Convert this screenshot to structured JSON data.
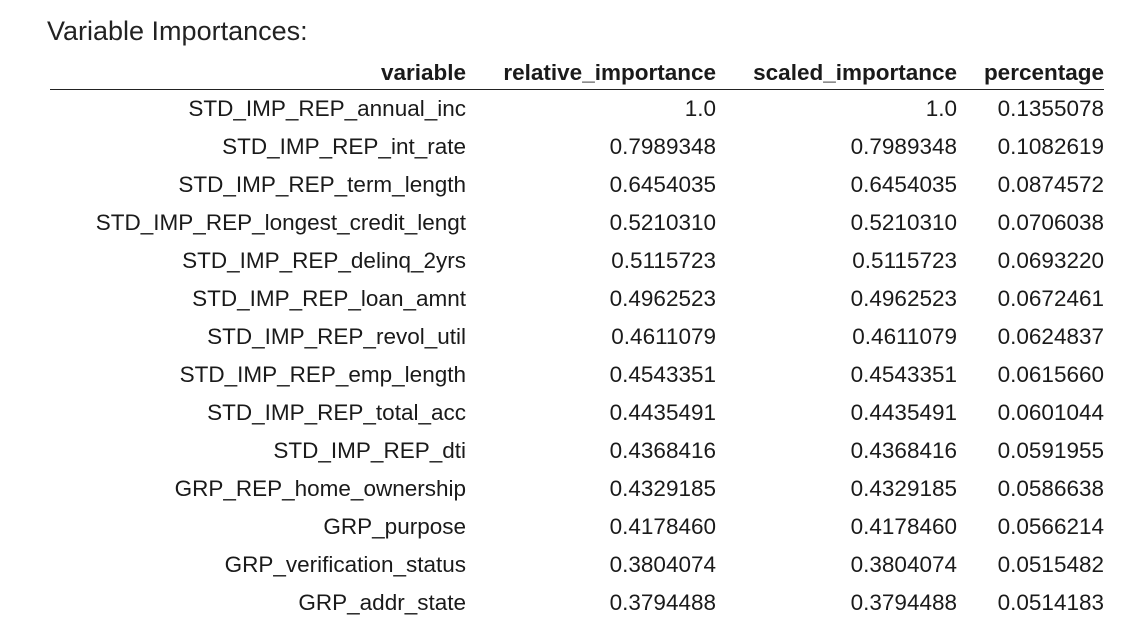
{
  "title": "Variable Importances:",
  "table": {
    "headers": [
      "variable",
      "relative_importance",
      "scaled_importance",
      "percentage"
    ],
    "rows": [
      [
        "STD_IMP_REP_annual_inc",
        "1.0",
        "1.0",
        "0.1355078"
      ],
      [
        "STD_IMP_REP_int_rate",
        "0.7989348",
        "0.7989348",
        "0.1082619"
      ],
      [
        "STD_IMP_REP_term_length",
        "0.6454035",
        "0.6454035",
        "0.0874572"
      ],
      [
        "STD_IMP_REP_longest_credit_lengt",
        "0.5210310",
        "0.5210310",
        "0.0706038"
      ],
      [
        "STD_IMP_REP_delinq_2yrs",
        "0.5115723",
        "0.5115723",
        "0.0693220"
      ],
      [
        "STD_IMP_REP_loan_amnt",
        "0.4962523",
        "0.4962523",
        "0.0672461"
      ],
      [
        "STD_IMP_REP_revol_util",
        "0.4611079",
        "0.4611079",
        "0.0624837"
      ],
      [
        "STD_IMP_REP_emp_length",
        "0.4543351",
        "0.4543351",
        "0.0615660"
      ],
      [
        "STD_IMP_REP_total_acc",
        "0.4435491",
        "0.4435491",
        "0.0601044"
      ],
      [
        "STD_IMP_REP_dti",
        "0.4368416",
        "0.4368416",
        "0.0591955"
      ],
      [
        "GRP_REP_home_ownership",
        "0.4329185",
        "0.4329185",
        "0.0586638"
      ],
      [
        "GRP_purpose",
        "0.4178460",
        "0.4178460",
        "0.0566214"
      ],
      [
        "GRP_verification_status",
        "0.3804074",
        "0.3804074",
        "0.0515482"
      ],
      [
        "GRP_addr_state",
        "0.3794488",
        "0.3794488",
        "0.0514183"
      ]
    ]
  }
}
